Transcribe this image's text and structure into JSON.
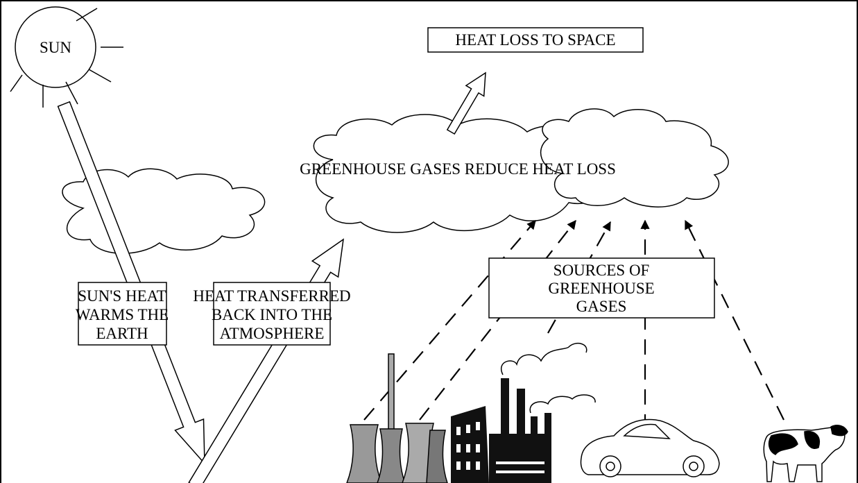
{
  "sun": {
    "label": "SUN"
  },
  "heat_loss_box": {
    "label": "HEAT LOSS TO SPACE"
  },
  "greenhouse_cloud": {
    "label": "GREENHOUSE GASES REDUCE HEAT LOSS"
  },
  "sun_heat_box": {
    "lines": [
      "SUN'S HEAT",
      "WARMS THE",
      "EARTH"
    ]
  },
  "heat_back_box": {
    "lines": [
      "HEAT TRANSFERRED",
      "BACK INTO THE",
      "ATMOSPHERE"
    ]
  },
  "sources_box": {
    "lines": [
      "SOURCES OF",
      "GREENHOUSE",
      "GASES"
    ]
  }
}
